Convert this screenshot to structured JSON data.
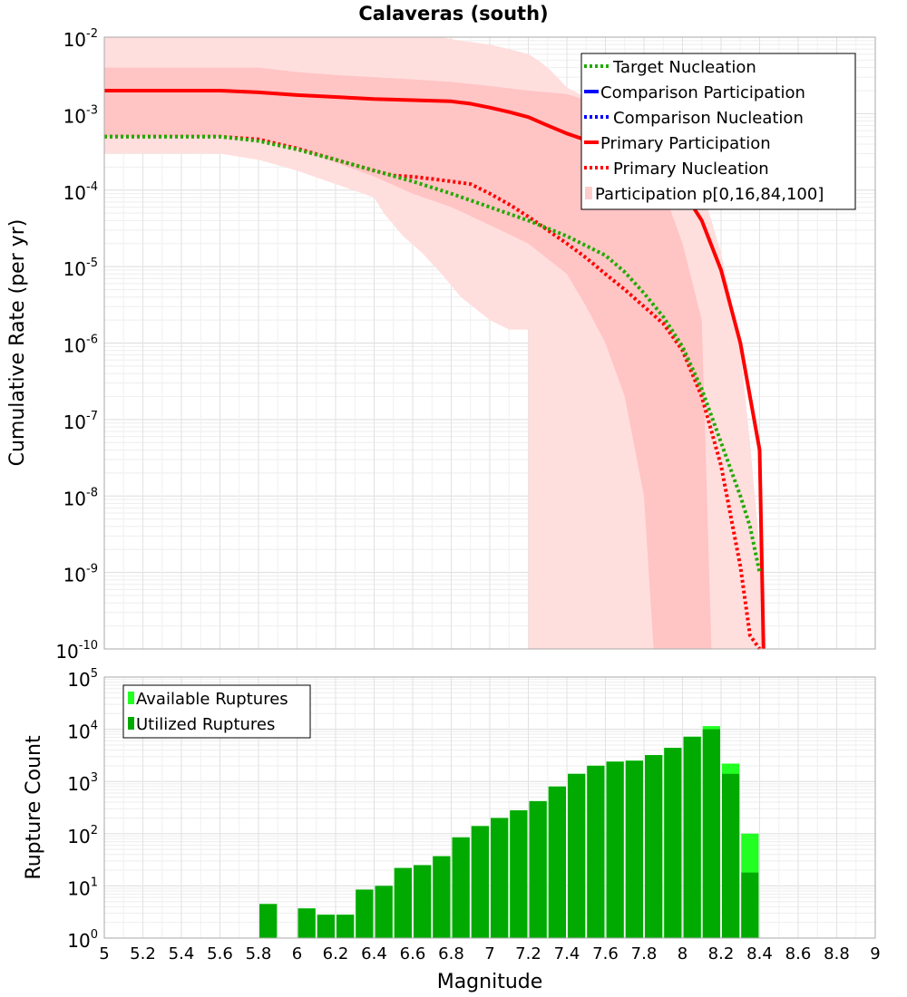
{
  "chart_data": [
    {
      "type": "line",
      "title": "Calaveras (south)",
      "ylabel": "Cumulative Rate (per yr)",
      "yscale": "log",
      "ylim": [
        1e-10,
        0.01
      ],
      "xlim": [
        5,
        9
      ],
      "grid": true,
      "legend_position": "top-right",
      "y_tick_mantissa": "10",
      "y_tick_exponents": [
        "-2",
        "-3",
        "-4",
        "-5",
        "-6",
        "-7",
        "-8",
        "-9",
        "-10"
      ],
      "legend": [
        {
          "label": "Target Nucleation",
          "color": "#22aa00",
          "style": "dotted"
        },
        {
          "label": "Comparison Participation",
          "color": "#0000ff",
          "style": "solid"
        },
        {
          "label": "Comparison Nucleation",
          "color": "#0000ff",
          "style": "dotted"
        },
        {
          "label": "Primary Participation",
          "color": "#ff0000",
          "style": "solid"
        },
        {
          "label": "Primary Nucleation",
          "color": "#ff0000",
          "style": "dotted"
        },
        {
          "label": "Participation p[0,16,84,100]",
          "color": "#ffb0b0",
          "style": "band"
        }
      ],
      "bands": [
        {
          "name": "p0-p100",
          "x": [
            5.0,
            5.6,
            5.8,
            6.0,
            6.2,
            6.4,
            6.45,
            6.55,
            6.65,
            6.75,
            6.85,
            7.0,
            7.1,
            7.2,
            7.2,
            7.25,
            7.3,
            7.35,
            7.4,
            7.6,
            7.8,
            8.0,
            8.1,
            8.15,
            8.2,
            8.25,
            8.3,
            8.35,
            8.4,
            8.42,
            8.42
          ],
          "low": [
            0.0003,
            0.0003,
            0.00025,
            0.00018,
            0.00012,
            8e-05,
            5e-05,
            2.5e-05,
            1.5e-05,
            8e-06,
            4e-06,
            2e-06,
            1.5e-06,
            1.5e-06,
            1e-10,
            1e-10,
            1e-10,
            1e-10,
            1e-10,
            1e-10,
            1e-10,
            1e-10,
            1e-10,
            1e-10,
            1e-10,
            1e-10,
            1e-10,
            1e-10,
            1e-10,
            1e-10,
            1e-10
          ],
          "high": [
            0.01,
            0.01,
            0.01,
            0.01,
            0.01,
            0.01,
            0.01,
            0.01,
            0.01,
            0.01,
            0.009,
            0.008,
            0.007,
            0.006,
            0.006,
            0.005,
            0.004,
            0.003,
            0.0022,
            0.0012,
            0.0006,
            0.00025,
            0.0001,
            4e-05,
            1.5e-05,
            4e-06,
            8e-07,
            5e-08,
            2e-09,
            1e-10,
            1e-10
          ]
        },
        {
          "name": "p16-p84",
          "x": [
            5.0,
            5.6,
            5.8,
            6.0,
            6.2,
            6.4,
            6.6,
            6.8,
            7.0,
            7.2,
            7.4,
            7.5,
            7.6,
            7.7,
            7.8,
            7.85,
            7.9,
            8.0,
            8.1,
            8.15
          ],
          "low": [
            0.0005,
            0.0005,
            0.00045,
            0.00035,
            0.00023,
            0.00015,
            9e-05,
            6e-05,
            3.5e-05,
            2e-05,
            8e-06,
            3e-06,
            1e-06,
            2e-07,
            1e-08,
            1e-10,
            1e-10,
            1e-10,
            1e-10,
            1e-10
          ],
          "high": [
            0.004,
            0.004,
            0.004,
            0.0035,
            0.0032,
            0.003,
            0.0028,
            0.0026,
            0.0023,
            0.002,
            0.0018,
            0.0015,
            0.0012,
            0.0007,
            0.00035,
            0.0002,
            0.0001,
            2e-05,
            2e-06,
            1e-10
          ]
        }
      ],
      "series": [
        {
          "name": "Primary Participation",
          "color": "#ff0000",
          "style": "solid",
          "x": [
            5.0,
            5.2,
            5.4,
            5.6,
            5.8,
            6.0,
            6.2,
            6.4,
            6.6,
            6.8,
            6.9,
            7.0,
            7.1,
            7.2,
            7.3,
            7.4,
            7.5,
            7.6,
            7.7,
            7.8,
            7.9,
            8.0,
            8.1,
            8.2,
            8.3,
            8.4,
            8.42
          ],
          "y": [
            0.002,
            0.002,
            0.002,
            0.002,
            0.0019,
            0.00175,
            0.00165,
            0.00155,
            0.0015,
            0.00145,
            0.00135,
            0.0012,
            0.00105,
            0.0009,
            0.0007,
            0.00055,
            0.00045,
            0.00038,
            0.00032,
            0.00025,
            0.00017,
            0.0001,
            4e-05,
            9e-06,
            1e-06,
            4e-08,
            1e-10
          ]
        },
        {
          "name": "Primary Nucleation",
          "color": "#ff0000",
          "style": "dotted",
          "x": [
            5.0,
            5.2,
            5.4,
            5.6,
            5.8,
            6.0,
            6.2,
            6.4,
            6.5,
            6.6,
            6.7,
            6.8,
            6.9,
            7.0,
            7.1,
            7.2,
            7.3,
            7.4,
            7.5,
            7.6,
            7.7,
            7.8,
            7.9,
            8.0,
            8.1,
            8.2,
            8.3,
            8.35,
            8.4
          ],
          "y": [
            0.0005,
            0.0005,
            0.0005,
            0.0005,
            0.00046,
            0.00035,
            0.00025,
            0.00018,
            0.000155,
            0.00015,
            0.00014,
            0.00013,
            0.00012,
            9e-05,
            6.5e-05,
            4.5e-05,
            3e-05,
            2e-05,
            1.3e-05,
            8e-06,
            5e-06,
            3e-06,
            1.8e-06,
            8e-07,
            2e-07,
            2.5e-08,
            1.2e-09,
            1.5e-10,
            1e-10
          ]
        },
        {
          "name": "Target Nucleation",
          "color": "#22aa00",
          "style": "dotted",
          "x": [
            5.0,
            5.2,
            5.4,
            5.6,
            5.8,
            6.0,
            6.2,
            6.4,
            6.6,
            6.8,
            7.0,
            7.2,
            7.4,
            7.6,
            7.7,
            7.8,
            7.9,
            8.0,
            8.1,
            8.2,
            8.3,
            8.35,
            8.4
          ],
          "y": [
            0.0005,
            0.0005,
            0.0005,
            0.0005,
            0.00044,
            0.00034,
            0.00025,
            0.00018,
            0.00013,
            9e-05,
            6e-05,
            4e-05,
            2.5e-05,
            1.4e-05,
            8.5e-06,
            4.5e-06,
            2.2e-06,
            9e-07,
            2.5e-07,
            5e-08,
            1e-08,
            4e-09,
            1e-09
          ]
        }
      ]
    },
    {
      "type": "bar",
      "xlabel": "Magnitude",
      "ylabel": "Rupture Count",
      "yscale": "log",
      "ylim": [
        1,
        100000
      ],
      "xlim": [
        5,
        9
      ],
      "grid": true,
      "legend_position": "top-left",
      "x_tick_labels": [
        "5",
        "5.2",
        "5.4",
        "5.6",
        "5.8",
        "6",
        "6.2",
        "6.4",
        "6.6",
        "6.8",
        "7",
        "7.2",
        "7.4",
        "7.6",
        "7.8",
        "8",
        "8.2",
        "8.4",
        "8.6",
        "8.8",
        "9"
      ],
      "y_tick_mantissa": "10",
      "y_tick_exponents": [
        "5",
        "4",
        "3",
        "2",
        "1",
        "0"
      ],
      "legend": [
        {
          "label": "Available Ruptures",
          "color": "#22ff22"
        },
        {
          "label": "Utilized Ruptures",
          "color": "#00aa00"
        }
      ],
      "bin_width": 0.1,
      "categories": [
        5.85,
        6.05,
        6.15,
        6.25,
        6.35,
        6.45,
        6.55,
        6.65,
        6.75,
        6.85,
        6.95,
        7.05,
        7.15,
        7.25,
        7.35,
        7.45,
        7.55,
        7.65,
        7.75,
        7.85,
        7.95,
        8.05,
        8.15,
        8.25,
        8.35
      ],
      "series": [
        {
          "name": "Available Ruptures",
          "values": [
            4.5,
            3.7,
            2.8,
            2.8,
            8.5,
            10,
            22,
            25,
            37,
            85,
            140,
            200,
            280,
            420,
            800,
            1400,
            2000,
            2400,
            2500,
            3200,
            4400,
            7200,
            11500,
            2200,
            100
          ]
        },
        {
          "name": "Utilized Ruptures",
          "values": [
            4.5,
            3.7,
            2.8,
            2.8,
            8.5,
            10,
            22,
            25,
            37,
            85,
            140,
            200,
            280,
            420,
            800,
            1400,
            2000,
            2400,
            2500,
            3200,
            4400,
            7200,
            10000,
            1400,
            18
          ]
        }
      ]
    }
  ]
}
